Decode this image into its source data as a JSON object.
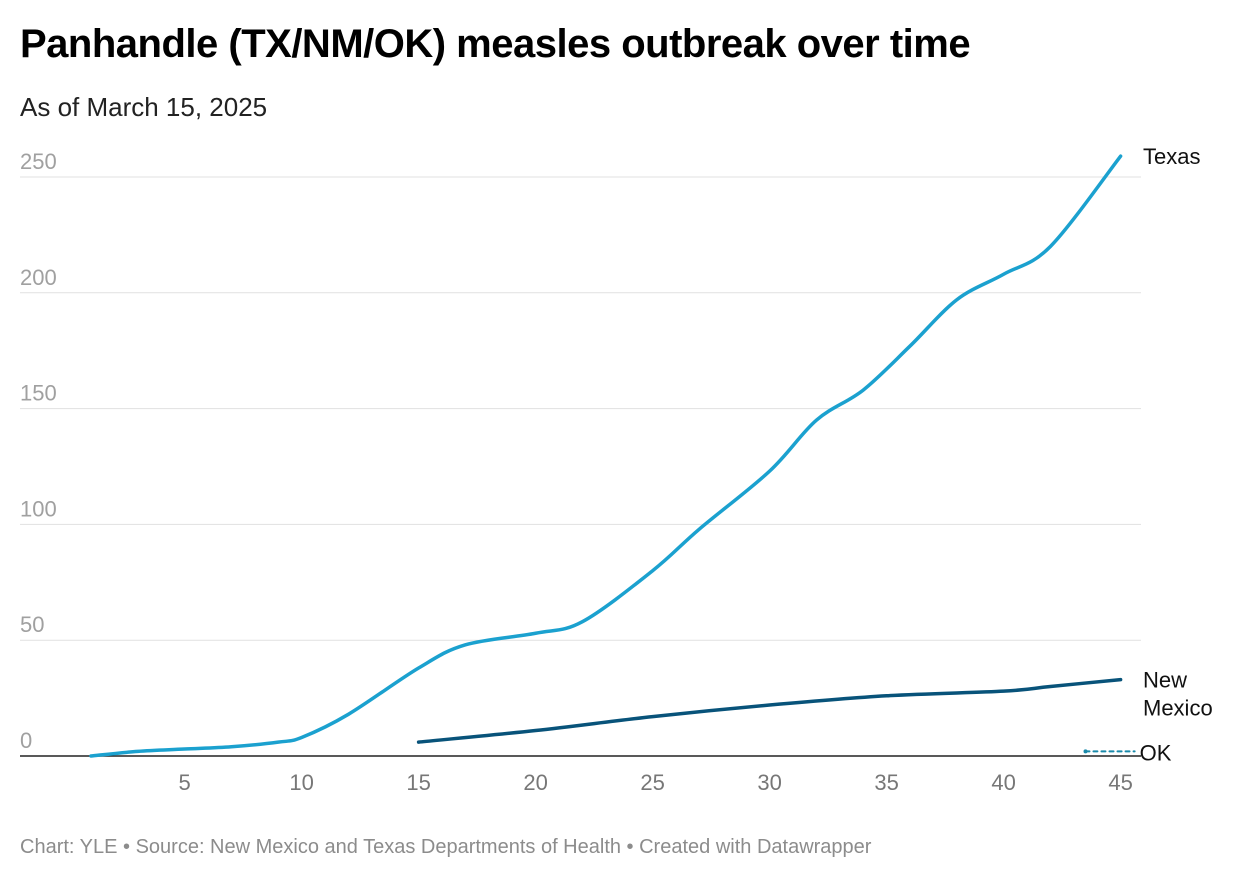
{
  "title": "Panhandle (TX/NM/OK) measles outbreak over time",
  "subtitle": "As of March 15, 2025",
  "footer": "Chart: YLE • Source: New Mexico and Texas Departments of Health • Created with Datawrapper",
  "chart_data": {
    "type": "line",
    "title": "Panhandle (TX/NM/OK) measles outbreak over time",
    "xlabel": "",
    "ylabel": "",
    "xlim": [
      1,
      45
    ],
    "ylim": [
      0,
      250
    ],
    "x_ticks": [
      5,
      10,
      15,
      20,
      25,
      30,
      35,
      40,
      45
    ],
    "y_ticks": [
      0,
      50,
      100,
      150,
      200,
      250
    ],
    "grid": true,
    "legend": "direct labels at line ends",
    "series": [
      {
        "name": "Texas",
        "color": "#1ba1cf",
        "dashed": false,
        "x": [
          1,
          3,
          5,
          7,
          9,
          10,
          12,
          15,
          17,
          20,
          22,
          25,
          27,
          30,
          32,
          34,
          36,
          38,
          40,
          42,
          45
        ],
        "y": [
          0,
          2,
          3,
          4,
          6,
          8,
          18,
          38,
          48,
          53,
          58,
          80,
          98,
          123,
          145,
          158,
          177,
          197,
          208,
          220,
          259
        ]
      },
      {
        "name": "New Mexico",
        "color": "#08537a",
        "dashed": false,
        "x": [
          15,
          20,
          25,
          30,
          35,
          40,
          42,
          45
        ],
        "y": [
          6,
          11,
          17,
          22,
          26,
          28,
          30,
          33
        ]
      },
      {
        "name": "OK",
        "color": "#1a8aaa",
        "dashed": true,
        "x": [
          43.5,
          45.6
        ],
        "y": [
          2,
          2
        ]
      }
    ]
  }
}
